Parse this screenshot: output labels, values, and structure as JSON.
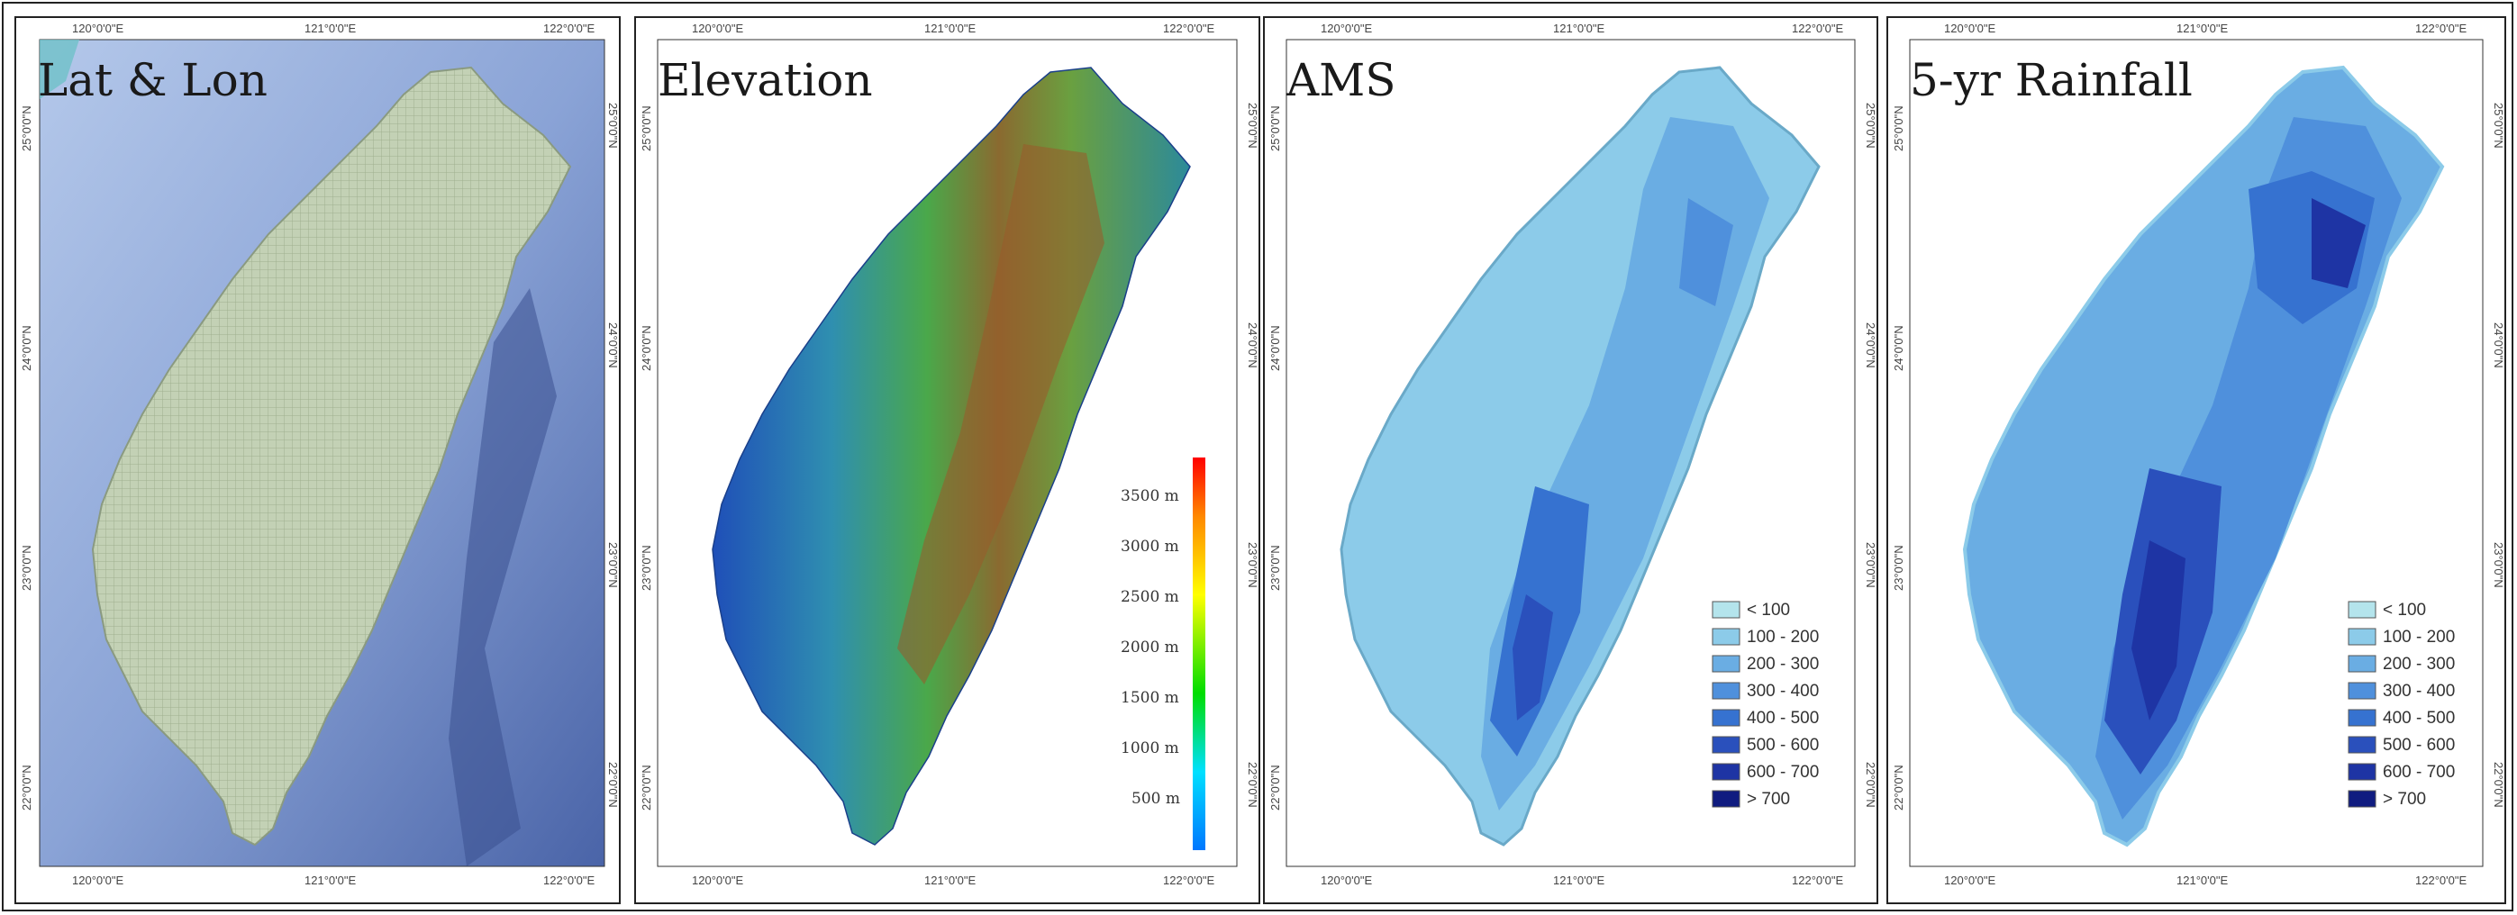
{
  "panels": [
    {
      "title": "Lat & Lon"
    },
    {
      "title": "Elevation"
    },
    {
      "title": "AMS"
    },
    {
      "title": "5-yr Rainfall"
    }
  ],
  "axes": {
    "lon_labels": [
      "120°0'0\"E",
      "121°0'0\"E",
      "122°0'0\"E"
    ],
    "lat_labels": [
      "25°0'0\"N",
      "24°0'0\"N",
      "23°0'0\"N",
      "22°0'0\"N"
    ]
  },
  "elevation_legend": {
    "labels": [
      "3500 m",
      "3000 m",
      "2500 m",
      "2000 m",
      "1500 m",
      "1000 m",
      "500 m"
    ]
  },
  "rainfall_legend": {
    "classes": [
      {
        "label": "< 100",
        "color": "#b4e4ec"
      },
      {
        "label": "100 - 200",
        "color": "#8ccbe9"
      },
      {
        "label": "200 - 300",
        "color": "#6aade3"
      },
      {
        "label": "300 - 400",
        "color": "#4f90dc"
      },
      {
        "label": "400 - 500",
        "color": "#3672d0"
      },
      {
        "label": "500 - 600",
        "color": "#2a50bc"
      },
      {
        "label": "600 - 700",
        "color": "#1e34a4"
      },
      {
        "label": "> 700",
        "color": "#101c80"
      }
    ]
  },
  "colors": {
    "sea_light": "#9fb6de",
    "sea_dark": "#3d5aa0",
    "land_grid": "#c9d8bd"
  }
}
